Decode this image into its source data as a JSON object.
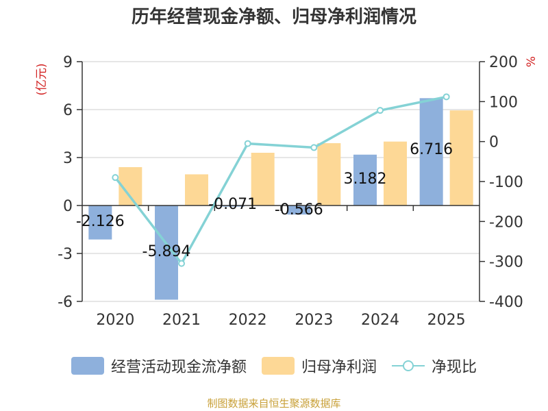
{
  "title": "历年经营现金净额、归母净利润情况",
  "footer": "制图数据来自恒生聚源数据库",
  "chart_data": {
    "type": "bar",
    "categories": [
      "2020",
      "2021",
      "2022",
      "2023",
      "2024",
      "2025"
    ],
    "left_axis": {
      "label": "(亿元)",
      "min": -6,
      "max": 9,
      "ticks": [
        -6,
        -3,
        0,
        3,
        6,
        9
      ]
    },
    "right_axis": {
      "label": "%",
      "min": -400,
      "max": 200,
      "ticks": [
        -400,
        -300,
        -200,
        -100,
        0,
        100,
        200
      ]
    },
    "grid": true,
    "legend_position": "bottom",
    "series": [
      {
        "name": "经营活动现金流净额",
        "type": "bar",
        "axis": "left",
        "color": "#8eb0dc",
        "values": [
          -2.126,
          -5.894,
          -0.071,
          -0.566,
          3.182,
          6.716
        ],
        "labels": [
          "-2.126",
          "-5.894",
          "-0.071",
          "-0.566",
          "3.182",
          "6.716"
        ]
      },
      {
        "name": "归母净利润",
        "type": "bar",
        "axis": "left",
        "color": "#fdd896",
        "values": [
          2.4,
          1.95,
          3.3,
          3.9,
          4.0,
          5.95
        ]
      },
      {
        "name": "净现比",
        "type": "line",
        "axis": "right",
        "color": "#84d2d5",
        "values": [
          -90,
          -305,
          -5,
          -15,
          78,
          112
        ]
      }
    ]
  }
}
